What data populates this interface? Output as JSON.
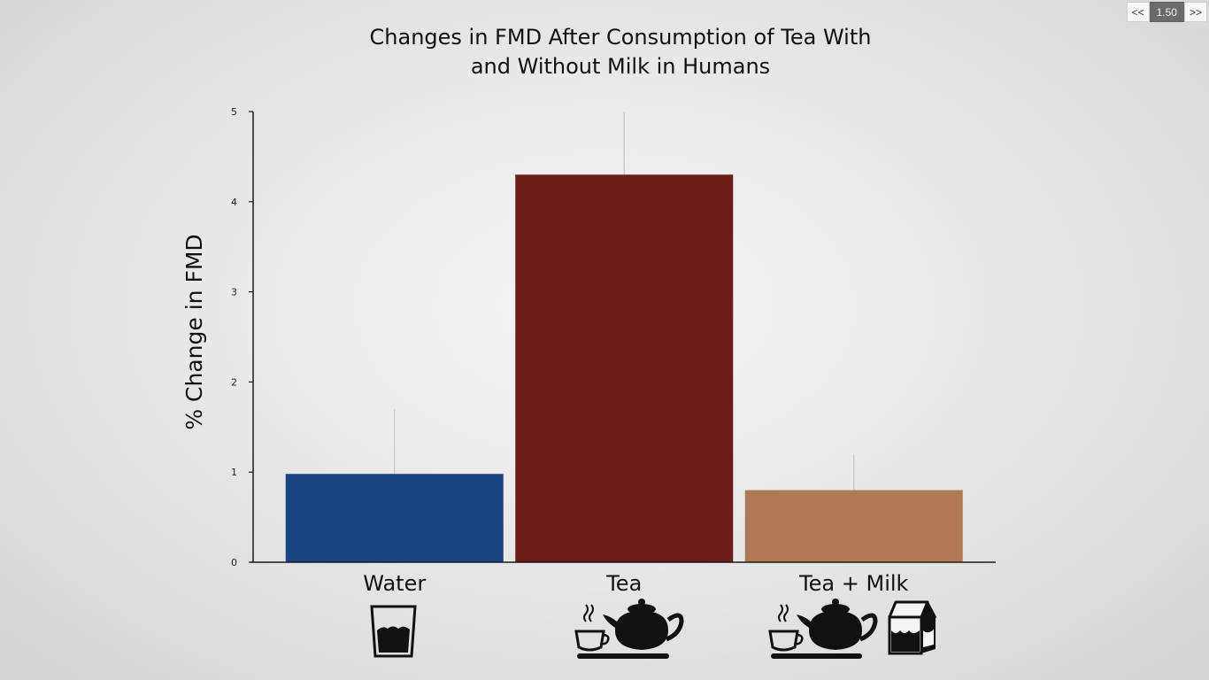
{
  "player": {
    "speed_down": "<<",
    "speed_value": "1.50",
    "speed_up": ">>"
  },
  "chart_data": {
    "type": "bar",
    "title_lines": [
      "Changes in FMD After Consumption of Tea With",
      "and Without Milk in Humans"
    ],
    "xlabel": "",
    "ylabel": "% Change in FMD",
    "ylim": [
      0,
      5
    ],
    "yticks": [
      "0",
      "1",
      "2",
      "3",
      "4",
      "5"
    ],
    "categories": [
      "Water",
      "Tea",
      "Tea + Milk"
    ],
    "values": [
      0.98,
      4.3,
      0.8
    ],
    "error_upper": [
      1.7,
      5.0,
      1.2
    ],
    "colors": [
      "#1a4382",
      "#6b1d18",
      "#b07856"
    ],
    "icons": [
      "water-glass-icon",
      "teacup-and-teapot-icon",
      "teacup-teapot-and-milk-carton-icon"
    ],
    "legend": "none",
    "grid": false
  }
}
